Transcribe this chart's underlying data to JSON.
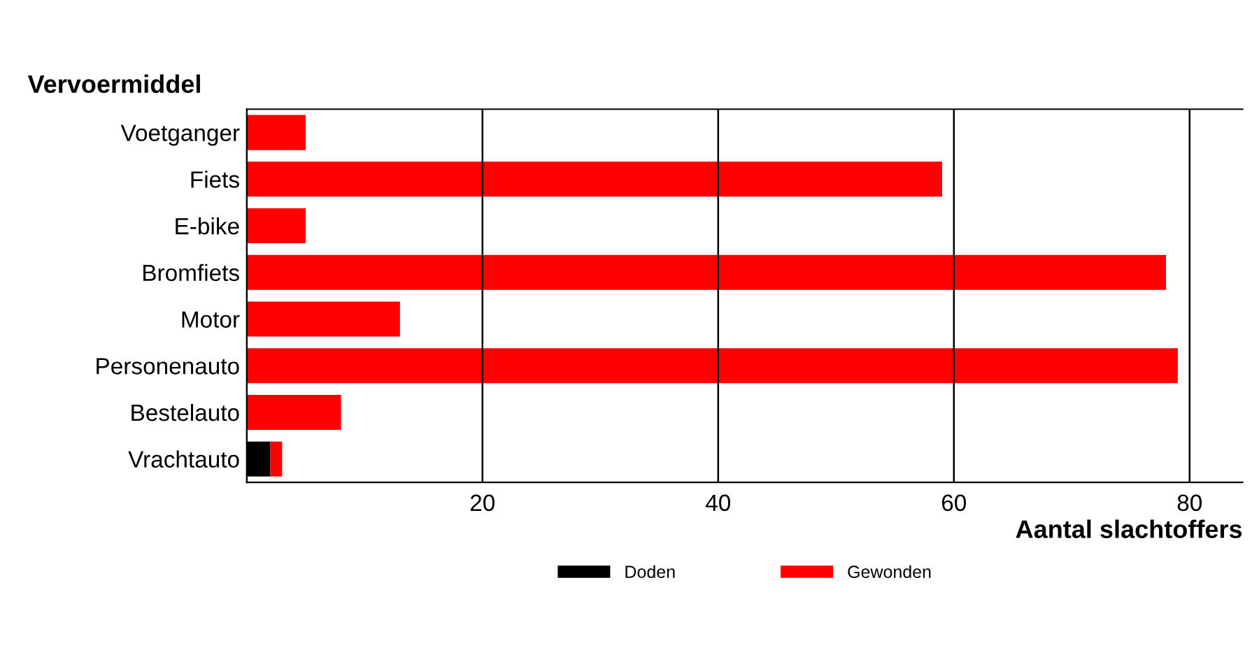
{
  "chart_data": {
    "type": "bar",
    "orientation": "horizontal",
    "stacked": true,
    "ylabel": "Vervoermiddel",
    "xlabel": "Aantal slachtoffers",
    "categories": [
      "Voetganger",
      "Fiets",
      "E-bike",
      "Bromfiets",
      "Motor",
      "Personenauto",
      "Bestelauto",
      "Vrachtauto"
    ],
    "series": [
      {
        "name": "Doden",
        "color": "#000000",
        "values": [
          0,
          0,
          0,
          0,
          0,
          0,
          0,
          2
        ]
      },
      {
        "name": "Gewonden",
        "color": "#ff0000",
        "values": [
          5,
          59,
          5,
          78,
          13,
          79,
          8,
          1
        ]
      }
    ],
    "xlim": [
      0,
      84.5
    ],
    "xticks": [
      {
        "value": 0,
        "label": null
      },
      20,
      40,
      60,
      80
    ],
    "grid": "x",
    "legend": "bottom"
  }
}
